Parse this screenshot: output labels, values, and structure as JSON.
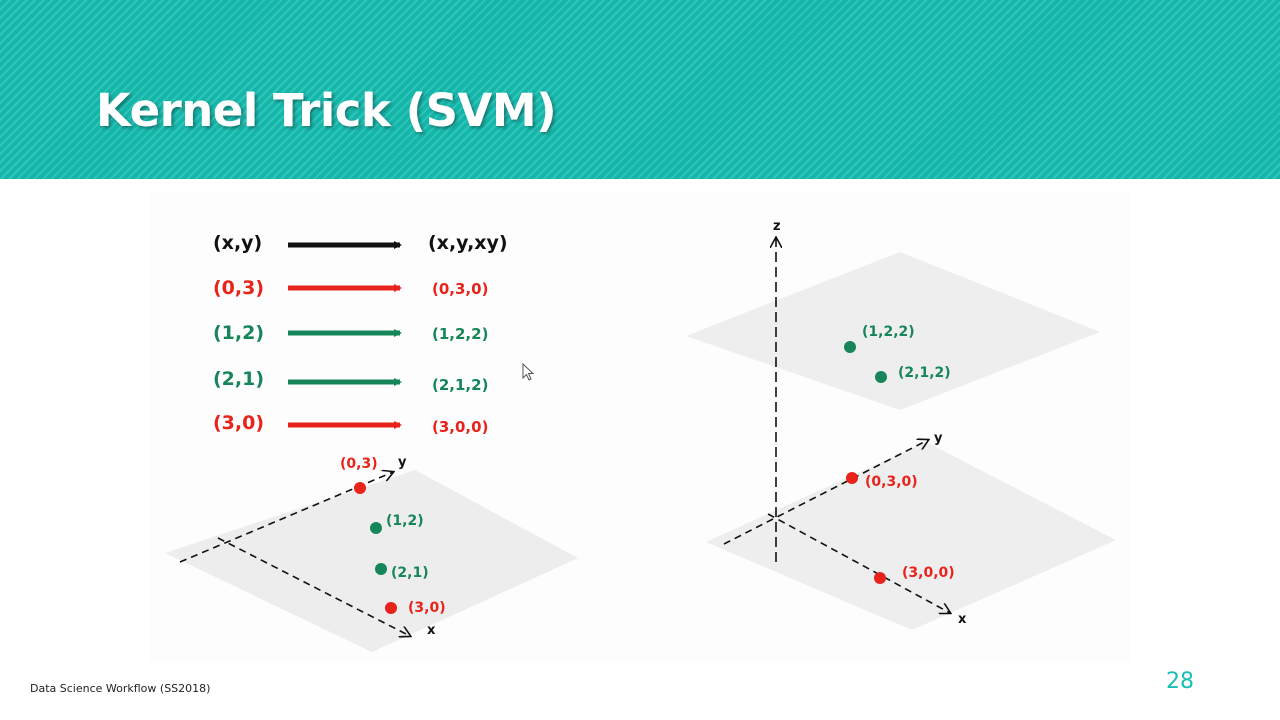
{
  "slide": {
    "title": "Kernel Trick (SVM)",
    "footer": "Data Science Workflow (SS2018)",
    "page_number": "28",
    "accent_color": "#17bfb2"
  },
  "colors": {
    "black": "#111111",
    "red": "#e8231c",
    "green": "#16865a"
  },
  "mapping": [
    {
      "from": "(x,y)",
      "to": "(x,y,xy)",
      "color": "black"
    },
    {
      "from": "(0,3)",
      "to": "(0,3,0)",
      "color": "red"
    },
    {
      "from": "(1,2)",
      "to": "(1,2,2)",
      "color": "green"
    },
    {
      "from": "(2,1)",
      "to": "(2,1,2)",
      "color": "green"
    },
    {
      "from": "(3,0)",
      "to": "(3,0,0)",
      "color": "red"
    }
  ],
  "plot_2d": {
    "axes": {
      "x": "x",
      "y": "y"
    },
    "points": [
      {
        "label": "(0,3)",
        "color": "red"
      },
      {
        "label": "(1,2)",
        "color": "green"
      },
      {
        "label": "(2,1)",
        "color": "green"
      },
      {
        "label": "(3,0)",
        "color": "red"
      }
    ]
  },
  "plot_3d": {
    "axes": {
      "x": "x",
      "y": "y",
      "z": "z"
    },
    "points": [
      {
        "label": "(1,2,2)",
        "color": "green"
      },
      {
        "label": "(2,1,2)",
        "color": "green"
      },
      {
        "label": "(0,3,0)",
        "color": "red"
      },
      {
        "label": "(3,0,0)",
        "color": "red"
      }
    ]
  }
}
